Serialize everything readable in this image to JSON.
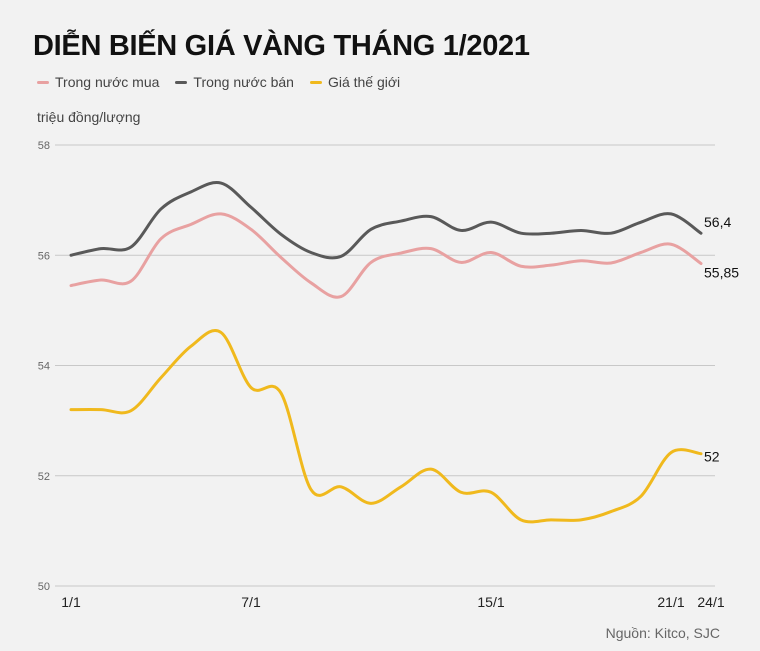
{
  "chart_data": {
    "type": "line",
    "title": "DIỄN BIẾN GIÁ VÀNG THÁNG 1/2021",
    "ylabel": "triệu đồng/lượng",
    "xlabel": "",
    "ylim": [
      50,
      58
    ],
    "yticks": [
      "50",
      "52",
      "54",
      "56",
      "58"
    ],
    "grid": true,
    "legend": "top-left",
    "xtick_labels": [
      {
        "index": 0,
        "label": "1/1"
      },
      {
        "index": 6,
        "label": "7/1"
      },
      {
        "index": 14,
        "label": "15/1"
      },
      {
        "index": 20,
        "label": "21/1"
      },
      {
        "index": 21,
        "label": "24/1"
      }
    ],
    "series": [
      {
        "name": "Trong nước mua",
        "color": "#e8a1a1",
        "values": [
          55.45,
          55.55,
          55.53,
          56.3,
          56.56,
          56.75,
          56.47,
          55.96,
          55.5,
          55.25,
          55.87,
          56.04,
          56.12,
          55.87,
          56.05,
          55.8,
          55.82,
          55.9,
          55.86,
          56.05,
          56.2,
          55.85
        ],
        "end_label": "55,85"
      },
      {
        "name": "Trong nước bán",
        "color": "#595959",
        "values": [
          56.0,
          56.12,
          56.15,
          56.84,
          57.15,
          57.31,
          56.87,
          56.38,
          56.05,
          55.98,
          56.47,
          56.62,
          56.7,
          56.45,
          56.6,
          56.4,
          56.4,
          56.45,
          56.4,
          56.6,
          56.75,
          56.4
        ],
        "end_label": "56,4"
      },
      {
        "name": "Giá thế giới",
        "color": "#f0b91d",
        "values": [
          53.2,
          53.2,
          53.18,
          53.78,
          54.35,
          54.6,
          53.6,
          53.5,
          51.75,
          51.8,
          51.5,
          51.8,
          52.12,
          51.7,
          51.7,
          51.2,
          51.2,
          51.2,
          51.35,
          51.63,
          52.42,
          52.4
        ],
        "end_label": "52"
      }
    ],
    "source": "Nguồn: Kitco, SJC"
  }
}
